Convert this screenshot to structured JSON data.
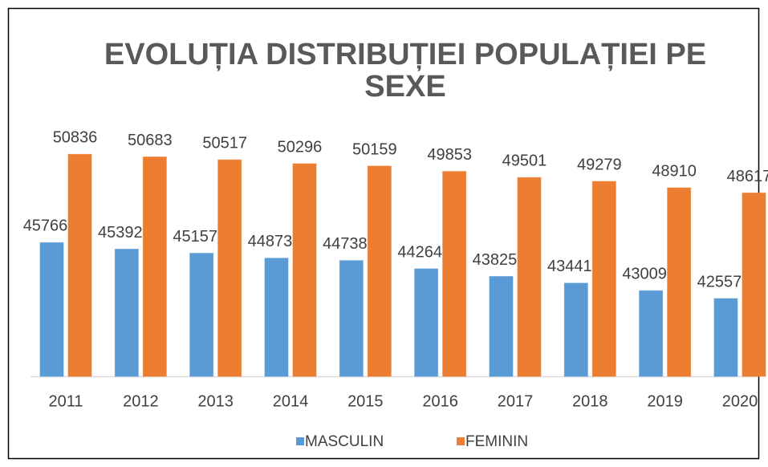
{
  "chart_data": {
    "type": "bar",
    "title": "EVOLUȚIA DISTRIBUȚIEI POPULAȚIEI PE SEXE",
    "categories": [
      "2011",
      "2012",
      "2013",
      "2014",
      "2015",
      "2016",
      "2017",
      "2018",
      "2019",
      "2020"
    ],
    "series": [
      {
        "name": "MASCULIN",
        "color": "#5b9bd5",
        "values": [
          45766,
          45392,
          45157,
          44873,
          44738,
          44264,
          43825,
          43441,
          43009,
          42557
        ]
      },
      {
        "name": "FEMININ",
        "color": "#ed7d31",
        "values": [
          50836,
          50683,
          50517,
          50296,
          50159,
          49853,
          49501,
          49279,
          48910,
          48617
        ]
      }
    ],
    "ylim": [
      38094,
      52000
    ],
    "legend": "bottom"
  }
}
